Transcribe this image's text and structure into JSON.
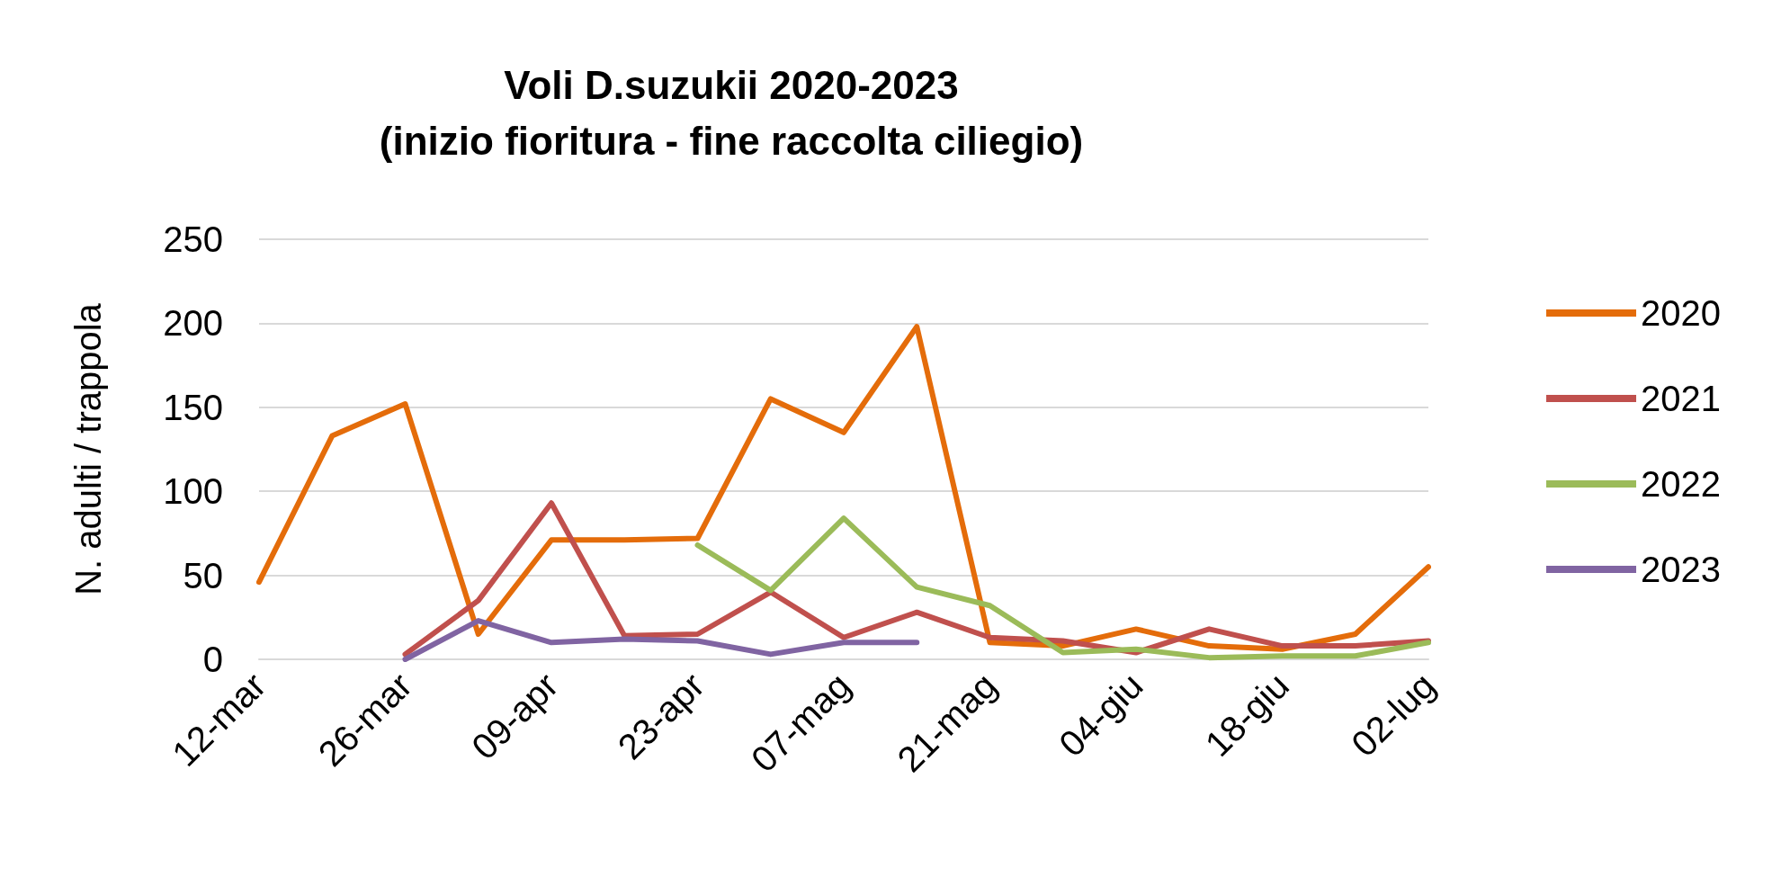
{
  "chart_data": {
    "type": "line",
    "title": "Voli D.suzukii 2020-2023\n(inizio fioritura - fine raccolta ciliegio)",
    "ylabel": "N. adulti / trappola",
    "categories": [
      "12-mar",
      null,
      "26-mar",
      null,
      "09-apr",
      null,
      "23-apr",
      null,
      "07-mag",
      null,
      "21-mag",
      null,
      "04-giu",
      null,
      "18-giu",
      null,
      "02-lug"
    ],
    "series": [
      {
        "name": "2020",
        "color": "#e46c0a",
        "values": [
          46,
          133,
          152,
          15,
          71,
          71,
          72,
          155,
          135,
          198,
          10,
          8,
          18,
          8,
          6,
          15,
          55
        ]
      },
      {
        "name": "2021",
        "color": "#c0504d",
        "values": [
          null,
          null,
          3,
          35,
          93,
          14,
          15,
          40,
          13,
          28,
          13,
          11,
          4,
          18,
          8,
          8,
          11
        ]
      },
      {
        "name": "2022",
        "color": "#9bbb59",
        "values": [
          null,
          null,
          null,
          null,
          null,
          null,
          68,
          41,
          84,
          43,
          32,
          4,
          6,
          1,
          2,
          2,
          10
        ]
      },
      {
        "name": "2023",
        "color": "#8064a2",
        "values": [
          null,
          null,
          0,
          23,
          10,
          12,
          11,
          3,
          10,
          10,
          null,
          null,
          null,
          null,
          null,
          null,
          null
        ]
      }
    ],
    "ylim": [
      0,
      250
    ],
    "yticks": [
      0,
      50,
      100,
      150,
      200,
      250
    ],
    "grid": "y",
    "legend": "right",
    "marker": "none",
    "line_style": "solid"
  }
}
